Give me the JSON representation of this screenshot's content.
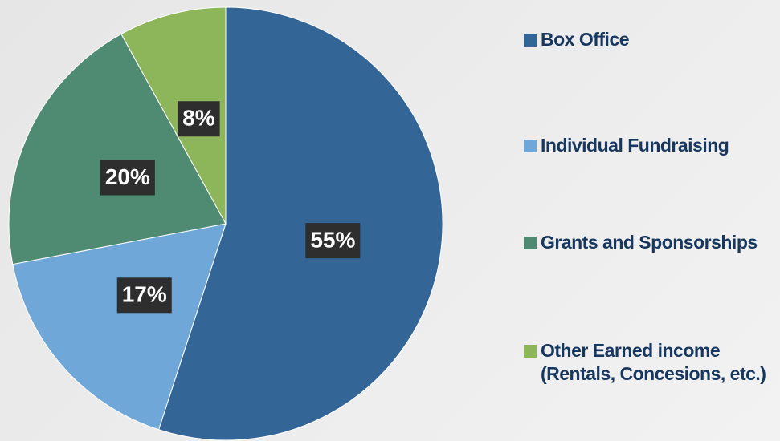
{
  "chart_data": {
    "type": "pie",
    "categories": [
      "Box Office",
      "Individual Fundraising",
      "Grants and Sponsorships",
      "Other Earned income (Rentals, Concesions, etc.)"
    ],
    "values": [
      55,
      17,
      20,
      8
    ],
    "value_labels": [
      "55%",
      "17%",
      "20%",
      "8%"
    ],
    "colors": [
      "#336596",
      "#6fa7d9",
      "#4f8a72",
      "#8db65b"
    ],
    "legend": "right"
  }
}
